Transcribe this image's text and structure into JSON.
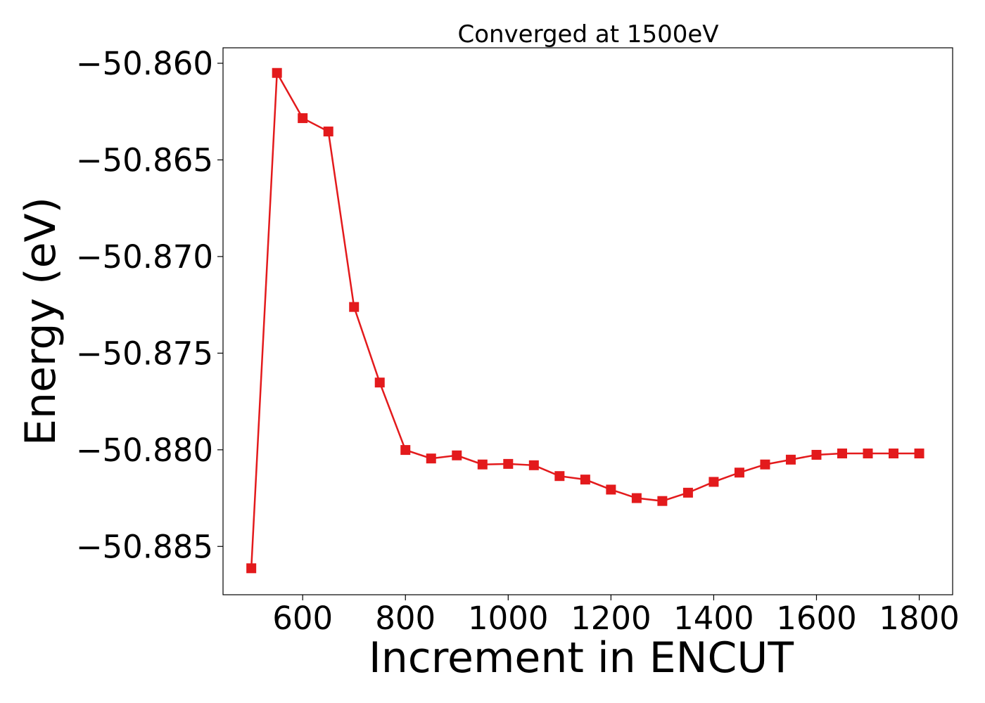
{
  "chart_data": {
    "type": "line",
    "title": "Converged at 1500eV",
    "xlabel": "Increment in ENCUT",
    "ylabel": "Energy (eV)",
    "xlim": [
      445,
      1865
    ],
    "ylim": [
      -50.8875,
      -50.8592
    ],
    "xticks": [
      600,
      800,
      1000,
      1200,
      1400,
      1600,
      1800
    ],
    "xtick_labels": [
      "600",
      "800",
      "1000",
      "1200",
      "1400",
      "1600",
      "1800"
    ],
    "yticks": [
      -50.86,
      -50.865,
      -50.87,
      -50.875,
      -50.88,
      -50.885
    ],
    "ytick_labels": [
      "−50.860",
      "−50.865",
      "−50.870",
      "−50.875",
      "−50.880",
      "−50.885"
    ],
    "grid": false,
    "legend": null,
    "colors": {
      "line": "#e31a1c",
      "marker": "#e31a1c",
      "axes": "#000000"
    },
    "marker": "square",
    "series": [
      {
        "x": [
          500,
          550,
          600,
          650,
          700,
          750,
          800,
          850,
          900,
          950,
          1000,
          1050,
          1100,
          1150,
          1200,
          1250,
          1300,
          1350,
          1400,
          1450,
          1500,
          1550,
          1600,
          1650,
          1700,
          1750,
          1800
        ],
        "values": [
          -50.88613,
          -50.8605,
          -50.86284,
          -50.86353,
          -50.87261,
          -50.87652,
          -50.88001,
          -50.88045,
          -50.88029,
          -50.88076,
          -50.88073,
          -50.8808,
          -50.88136,
          -50.88154,
          -50.88206,
          -50.8825,
          -50.88265,
          -50.88222,
          -50.88166,
          -50.88118,
          -50.88076,
          -50.88051,
          -50.88026,
          -50.88019,
          -50.88019,
          -50.88019,
          -50.88019
        ]
      }
    ]
  }
}
